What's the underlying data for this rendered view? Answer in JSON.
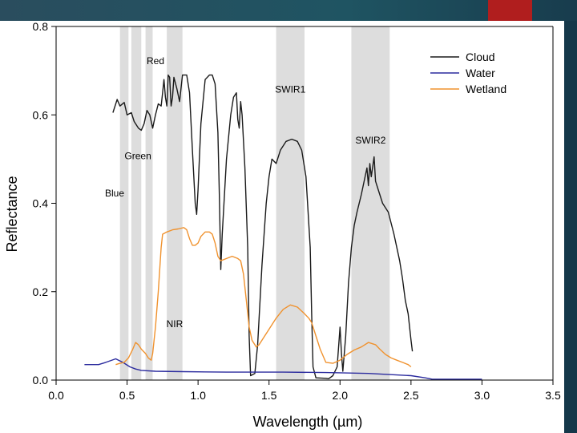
{
  "chart_data": {
    "type": "line",
    "title": "",
    "xlabel": "Wavelength (µm)",
    "ylabel": "Reflectance",
    "xlim": [
      0.0,
      3.5
    ],
    "ylim": [
      0.0,
      0.8
    ],
    "xticks": [
      "0.0",
      "0.5",
      "1.0",
      "1.5",
      "2.0",
      "2.5",
      "3.0",
      "3.5"
    ],
    "yticks": [
      "0.0",
      "0.2",
      "0.4",
      "0.6",
      "0.8"
    ],
    "grid": false,
    "legend": "top-right",
    "bands": [
      {
        "label": "Blue",
        "x0": 0.45,
        "x1": 0.51
      },
      {
        "label": "Green",
        "x0": 0.53,
        "x1": 0.6
      },
      {
        "label": "Red",
        "x0": 0.63,
        "x1": 0.68
      },
      {
        "label": "NIR",
        "x0": 0.78,
        "x1": 0.89
      },
      {
        "label": "SWIR1",
        "x0": 1.55,
        "x1": 1.75
      },
      {
        "label": "SWIR2",
        "x0": 2.08,
        "x1": 2.35
      }
    ],
    "series": [
      {
        "name": "Cloud",
        "color": "#1a1a1a",
        "points": [
          [
            0.4,
            0.605
          ],
          [
            0.43,
            0.635
          ],
          [
            0.45,
            0.62
          ],
          [
            0.48,
            0.628
          ],
          [
            0.5,
            0.6
          ],
          [
            0.53,
            0.605
          ],
          [
            0.55,
            0.585
          ],
          [
            0.58,
            0.57
          ],
          [
            0.6,
            0.565
          ],
          [
            0.62,
            0.58
          ],
          [
            0.64,
            0.61
          ],
          [
            0.66,
            0.6
          ],
          [
            0.68,
            0.57
          ],
          [
            0.7,
            0.6
          ],
          [
            0.72,
            0.625
          ],
          [
            0.74,
            0.62
          ],
          [
            0.75,
            0.65
          ],
          [
            0.76,
            0.68
          ],
          [
            0.77,
            0.64
          ],
          [
            0.78,
            0.62
          ],
          [
            0.79,
            0.69
          ],
          [
            0.8,
            0.685
          ],
          [
            0.81,
            0.62
          ],
          [
            0.82,
            0.64
          ],
          [
            0.83,
            0.685
          ],
          [
            0.85,
            0.66
          ],
          [
            0.87,
            0.63
          ],
          [
            0.89,
            0.69
          ],
          [
            0.92,
            0.69
          ],
          [
            0.94,
            0.65
          ],
          [
            0.96,
            0.52
          ],
          [
            0.98,
            0.4
          ],
          [
            0.99,
            0.375
          ],
          [
            1.0,
            0.43
          ],
          [
            1.02,
            0.58
          ],
          [
            1.05,
            0.68
          ],
          [
            1.08,
            0.69
          ],
          [
            1.1,
            0.69
          ],
          [
            1.12,
            0.67
          ],
          [
            1.14,
            0.56
          ],
          [
            1.15,
            0.42
          ],
          [
            1.16,
            0.25
          ],
          [
            1.17,
            0.33
          ],
          [
            1.2,
            0.5
          ],
          [
            1.23,
            0.6
          ],
          [
            1.25,
            0.64
          ],
          [
            1.27,
            0.65
          ],
          [
            1.28,
            0.59
          ],
          [
            1.29,
            0.57
          ],
          [
            1.3,
            0.63
          ],
          [
            1.31,
            0.6
          ],
          [
            1.33,
            0.48
          ],
          [
            1.35,
            0.3
          ],
          [
            1.36,
            0.1
          ],
          [
            1.37,
            0.01
          ],
          [
            1.4,
            0.015
          ],
          [
            1.42,
            0.08
          ],
          [
            1.45,
            0.26
          ],
          [
            1.48,
            0.4
          ],
          [
            1.5,
            0.46
          ],
          [
            1.52,
            0.5
          ],
          [
            1.55,
            0.49
          ],
          [
            1.58,
            0.52
          ],
          [
            1.62,
            0.54
          ],
          [
            1.66,
            0.545
          ],
          [
            1.7,
            0.54
          ],
          [
            1.73,
            0.52
          ],
          [
            1.76,
            0.46
          ],
          [
            1.79,
            0.3
          ],
          [
            1.8,
            0.15
          ],
          [
            1.81,
            0.03
          ],
          [
            1.83,
            0.005
          ],
          [
            1.9,
            0.004
          ],
          [
            1.92,
            0.003
          ],
          [
            1.95,
            0.01
          ],
          [
            1.98,
            0.03
          ],
          [
            2.0,
            0.12
          ],
          [
            2.01,
            0.06
          ],
          [
            2.02,
            0.02
          ],
          [
            2.04,
            0.1
          ],
          [
            2.06,
            0.22
          ],
          [
            2.08,
            0.3
          ],
          [
            2.1,
            0.35
          ],
          [
            2.12,
            0.38
          ],
          [
            2.15,
            0.42
          ],
          [
            2.17,
            0.45
          ],
          [
            2.19,
            0.48
          ],
          [
            2.2,
            0.44
          ],
          [
            2.21,
            0.49
          ],
          [
            2.22,
            0.46
          ],
          [
            2.24,
            0.505
          ],
          [
            2.25,
            0.45
          ],
          [
            2.27,
            0.43
          ],
          [
            2.3,
            0.4
          ],
          [
            2.34,
            0.38
          ],
          [
            2.38,
            0.33
          ],
          [
            2.42,
            0.27
          ],
          [
            2.44,
            0.23
          ],
          [
            2.46,
            0.18
          ],
          [
            2.48,
            0.15
          ],
          [
            2.5,
            0.09
          ],
          [
            2.51,
            0.065
          ]
        ]
      },
      {
        "name": "Water",
        "color": "#2b2b9e",
        "points": [
          [
            0.2,
            0.035
          ],
          [
            0.3,
            0.035
          ],
          [
            0.35,
            0.04
          ],
          [
            0.42,
            0.048
          ],
          [
            0.47,
            0.04
          ],
          [
            0.52,
            0.03
          ],
          [
            0.56,
            0.025
          ],
          [
            0.6,
            0.022
          ],
          [
            0.7,
            0.02
          ],
          [
            0.9,
            0.019
          ],
          [
            1.2,
            0.018
          ],
          [
            1.6,
            0.018
          ],
          [
            1.9,
            0.017
          ],
          [
            2.2,
            0.015
          ],
          [
            2.5,
            0.01
          ],
          [
            2.6,
            0.005
          ],
          [
            2.65,
            0.002
          ],
          [
            3.0,
            0.002
          ]
        ]
      },
      {
        "name": "Wetland",
        "color": "#f0922e",
        "points": [
          [
            0.42,
            0.035
          ],
          [
            0.45,
            0.038
          ],
          [
            0.48,
            0.04
          ],
          [
            0.51,
            0.05
          ],
          [
            0.54,
            0.07
          ],
          [
            0.56,
            0.085
          ],
          [
            0.58,
            0.08
          ],
          [
            0.6,
            0.07
          ],
          [
            0.63,
            0.06
          ],
          [
            0.65,
            0.05
          ],
          [
            0.67,
            0.045
          ],
          [
            0.68,
            0.06
          ],
          [
            0.7,
            0.12
          ],
          [
            0.72,
            0.2
          ],
          [
            0.74,
            0.3
          ],
          [
            0.75,
            0.33
          ],
          [
            0.78,
            0.335
          ],
          [
            0.82,
            0.34
          ],
          [
            0.86,
            0.342
          ],
          [
            0.9,
            0.345
          ],
          [
            0.92,
            0.34
          ],
          [
            0.94,
            0.32
          ],
          [
            0.96,
            0.305
          ],
          [
            0.98,
            0.305
          ],
          [
            1.0,
            0.31
          ],
          [
            1.02,
            0.325
          ],
          [
            1.05,
            0.335
          ],
          [
            1.08,
            0.335
          ],
          [
            1.1,
            0.33
          ],
          [
            1.12,
            0.31
          ],
          [
            1.14,
            0.28
          ],
          [
            1.16,
            0.27
          ],
          [
            1.2,
            0.275
          ],
          [
            1.24,
            0.28
          ],
          [
            1.28,
            0.275
          ],
          [
            1.3,
            0.27
          ],
          [
            1.32,
            0.24
          ],
          [
            1.34,
            0.18
          ],
          [
            1.36,
            0.12
          ],
          [
            1.38,
            0.09
          ],
          [
            1.41,
            0.075
          ],
          [
            1.43,
            0.08
          ],
          [
            1.46,
            0.095
          ],
          [
            1.5,
            0.115
          ],
          [
            1.55,
            0.14
          ],
          [
            1.6,
            0.16
          ],
          [
            1.65,
            0.17
          ],
          [
            1.7,
            0.165
          ],
          [
            1.75,
            0.15
          ],
          [
            1.78,
            0.14
          ],
          [
            1.8,
            0.13
          ],
          [
            1.83,
            0.1
          ],
          [
            1.86,
            0.07
          ],
          [
            1.9,
            0.04
          ],
          [
            1.95,
            0.038
          ],
          [
            2.0,
            0.045
          ],
          [
            2.05,
            0.058
          ],
          [
            2.1,
            0.068
          ],
          [
            2.15,
            0.075
          ],
          [
            2.2,
            0.085
          ],
          [
            2.25,
            0.08
          ],
          [
            2.28,
            0.07
          ],
          [
            2.32,
            0.058
          ],
          [
            2.36,
            0.05
          ],
          [
            2.4,
            0.045
          ],
          [
            2.44,
            0.04
          ],
          [
            2.48,
            0.035
          ],
          [
            2.5,
            0.03
          ]
        ]
      }
    ]
  },
  "colors": {
    "band_fill": "#dddddd",
    "slide_bg": "#ffffff",
    "accent": "#b01e1e",
    "frame_bg": "#1d3a4c"
  }
}
